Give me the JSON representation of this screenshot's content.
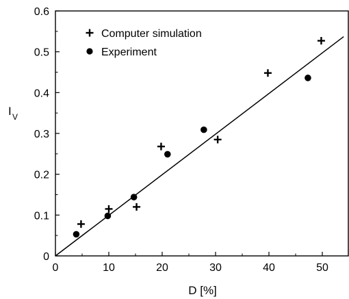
{
  "chart_data": {
    "type": "scatter",
    "xlabel": "D [%]",
    "ylabel_main": "I",
    "ylabel_sub": "V",
    "xlim": [
      0,
      55
    ],
    "ylim": [
      0,
      0.6
    ],
    "x_ticks": [
      0,
      10,
      20,
      30,
      40,
      50
    ],
    "x_tick_labels": [
      "0",
      "10",
      "20",
      "30",
      "40",
      "50"
    ],
    "y_ticks": [
      0,
      0.1,
      0.2,
      0.3,
      0.4,
      0.5,
      0.6
    ],
    "y_tick_labels": [
      "0",
      "0.1",
      "0.2",
      "0.3",
      "0.4",
      "0.5",
      "0.6"
    ],
    "grid": false,
    "legend_position": "top-left",
    "series": [
      {
        "name": "Computer simulation",
        "marker": "plus",
        "x": [
          4.8,
          10.0,
          15.2,
          19.8,
          30.4,
          39.8,
          49.8
        ],
        "y": [
          0.078,
          0.115,
          0.12,
          0.268,
          0.285,
          0.448,
          0.527
        ]
      },
      {
        "name": "Experiment",
        "marker": "dot",
        "x": [
          3.9,
          9.8,
          14.7,
          21.0,
          27.8,
          47.3
        ],
        "y": [
          0.053,
          0.098,
          0.144,
          0.249,
          0.309,
          0.436
        ]
      }
    ],
    "fit_line": {
      "x": [
        0,
        54
      ],
      "y": [
        0,
        0.537
      ]
    }
  }
}
